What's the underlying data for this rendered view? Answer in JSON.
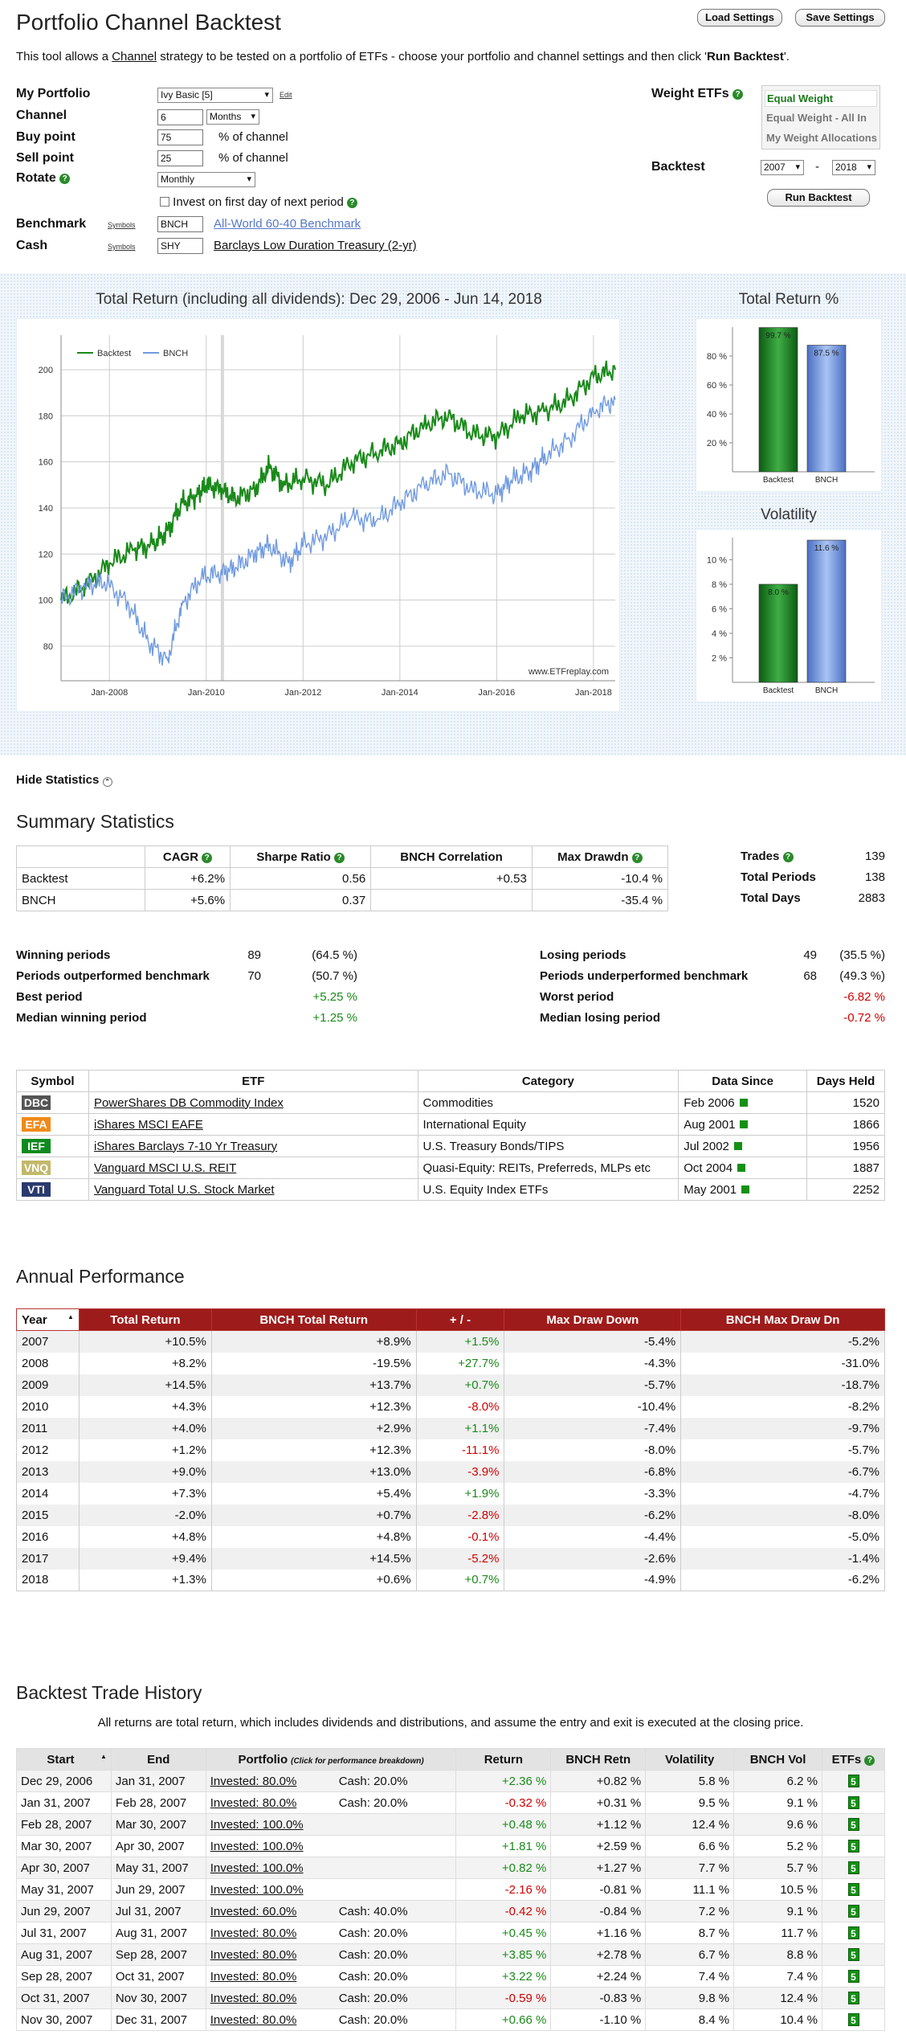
{
  "header": {
    "title": "Portfolio Channel Backtest",
    "load_label": "Load Settings",
    "save_label": "Save Settings",
    "intro_pre": "This tool allows a ",
    "intro_link": "Channel",
    "intro_mid": " strategy to be tested on a portfolio of ETFs - choose your portfolio and channel settings and then click '",
    "intro_bold": "Run Backtest",
    "intro_post": "'."
  },
  "form": {
    "portfolio_label": "My Portfolio",
    "portfolio_value": "Ivy Basic [5]",
    "edit": "Edit",
    "channel_label": "Channel",
    "channel_value": "6",
    "channel_unit": "Months",
    "buy_label": "Buy point",
    "buy_value": "75",
    "pct": "% of channel",
    "sell_label": "Sell point",
    "sell_value": "25",
    "rotate_label": "Rotate",
    "rotate_value": "Monthly",
    "invest_label": "Invest on first day of next period",
    "bench_label": "Benchmark",
    "symbols": "Symbols",
    "bench_value": "BNCH",
    "bench_name": "All-World 60-40 Benchmark",
    "cash_label": "Cash",
    "cash_value": "SHY",
    "cash_name": "Barclays Low Duration Treasury (2-yr)",
    "weight_label": "Weight ETFs",
    "weight_opts": [
      "Equal Weight",
      "Equal Weight - All In",
      "My Weight Allocations"
    ],
    "backtest_label": "Backtest",
    "from": "2007",
    "dash": "-",
    "to": "2018",
    "run": "Run Backtest"
  },
  "colors": {
    "backtest": "#1a8a1a",
    "bench": "#6f9ae0",
    "header_red": "#9e1b1b"
  },
  "chart_data": [
    {
      "type": "line",
      "title": "Total Return (including all dividends): Dec 29, 2006 - Jun 14, 2018",
      "series": [
        {
          "name": "Backtest",
          "color": "#1a8a1a",
          "x": [
            2007.0,
            2007.5,
            2008.0,
            2008.5,
            2008.9,
            2009.2,
            2009.5,
            2009.8,
            2010.0,
            2010.3,
            2010.6,
            2011.0,
            2011.3,
            2011.6,
            2012.0,
            2012.5,
            2013.0,
            2013.5,
            2014.0,
            2014.5,
            2015.0,
            2015.5,
            2016.0,
            2016.5,
            2017.0,
            2017.5,
            2018.0,
            2018.45
          ],
          "y": [
            100,
            106,
            116,
            122,
            124,
            130,
            142,
            145,
            150,
            148,
            144,
            148,
            158,
            150,
            153,
            150,
            160,
            164,
            168,
            176,
            180,
            172,
            171,
            180,
            182,
            187,
            197,
            200
          ]
        },
        {
          "name": "BNCH",
          "color": "#6f9ae0",
          "x": [
            2007.0,
            2007.5,
            2007.9,
            2008.4,
            2008.8,
            2009.2,
            2009.5,
            2009.9,
            2010.3,
            2010.6,
            2011.0,
            2011.3,
            2011.7,
            2012.0,
            2012.5,
            2013.0,
            2013.5,
            2014.0,
            2014.5,
            2015.0,
            2015.5,
            2016.0,
            2016.3,
            2016.7,
            2017.0,
            2017.5,
            2018.0,
            2018.45
          ],
          "y": [
            100,
            106,
            108,
            98,
            82,
            74,
            98,
            110,
            112,
            114,
            120,
            124,
            116,
            124,
            128,
            136,
            134,
            142,
            150,
            155,
            148,
            146,
            152,
            156,
            162,
            170,
            182,
            187
          ]
        }
      ],
      "ylim": [
        65,
        215
      ],
      "xlim": [
        2007.0,
        2018.45
      ],
      "yticks": [
        80,
        100,
        120,
        140,
        160,
        180,
        200
      ],
      "xticks": [
        {
          "x": 2008,
          "label": "Jan-2008"
        },
        {
          "x": 2010,
          "label": "Jan-2010"
        },
        {
          "x": 2012,
          "label": "Jan-2012"
        },
        {
          "x": 2014,
          "label": "Jan-2014"
        },
        {
          "x": 2016,
          "label": "Jan-2016"
        },
        {
          "x": 2018,
          "label": "Jan-2018"
        }
      ],
      "legend": "top-left",
      "watermark": "www.ETFreplay.com",
      "grid": true
    },
    {
      "type": "bar",
      "title": "Total Return %",
      "categories": [
        "Backtest",
        "BNCH"
      ],
      "values": [
        99.7,
        87.5
      ],
      "labels": [
        "99.7 %",
        "87.5 %"
      ],
      "ylim": [
        0,
        100
      ],
      "yticks": [
        20,
        40,
        60,
        80
      ],
      "ytick_labels": [
        "20 %",
        "40 %",
        "60 %",
        "80 %"
      ]
    },
    {
      "type": "bar",
      "title": "Volatility",
      "categories": [
        "Backtest",
        "BNCH"
      ],
      "values": [
        8.0,
        11.6
      ],
      "labels": [
        "8.0 %",
        "11.6 %"
      ],
      "ylim": [
        0,
        11.8
      ],
      "yticks": [
        2,
        4,
        6,
        8,
        10
      ],
      "ytick_labels": [
        "2 %",
        "4 %",
        "6 %",
        "8 %",
        "10 %"
      ]
    }
  ],
  "stats": {
    "hide": "Hide Statistics",
    "summary_title": "Summary Statistics",
    "cols": [
      "",
      "CAGR",
      "Sharpe Ratio",
      "BNCH Correlation",
      "Max Drawdn"
    ],
    "rows": [
      [
        "Backtest",
        "+6.2%",
        "0.56",
        "+0.53",
        "-10.4 %"
      ],
      [
        "BNCH",
        "+5.6%",
        "0.37",
        "",
        "-35.4 %"
      ]
    ],
    "side": [
      [
        "Trades",
        "139"
      ],
      [
        "Total Periods",
        "138"
      ],
      [
        "Total Days",
        "2883"
      ]
    ],
    "left": [
      [
        "Winning periods",
        "89",
        "(64.5 %)"
      ],
      [
        "Periods outperformed benchmark",
        "70",
        "(50.7 %)"
      ],
      [
        "Best period",
        "",
        "+5.25 %"
      ],
      [
        "Median winning period",
        "",
        "+1.25 %"
      ]
    ],
    "right": [
      [
        "Losing periods",
        "49",
        "(35.5 %)"
      ],
      [
        "Periods underperformed benchmark",
        "68",
        "(49.3 %)"
      ],
      [
        "Worst period",
        "",
        "-6.82 %"
      ],
      [
        "Median losing period",
        "",
        "-0.72 %"
      ]
    ]
  },
  "etfs": {
    "cols": [
      "Symbol",
      "ETF",
      "Category",
      "Data Since",
      "Days Held"
    ],
    "rows": [
      {
        "sym": "DBC",
        "color": "#555555",
        "name": "PowerShares DB Commodity Index",
        "cat": "Commodities",
        "since": "Feb 2006",
        "days": "1520"
      },
      {
        "sym": "EFA",
        "color": "#f08a1a",
        "name": "iShares MSCI EAFE",
        "cat": "International Equity",
        "since": "Aug 2001",
        "days": "1866"
      },
      {
        "sym": "IEF",
        "color": "#0e8a1e",
        "name": "iShares Barclays 7-10 Yr Treasury",
        "cat": "U.S. Treasury Bonds/TIPS",
        "since": "Jul 2002",
        "days": "1956"
      },
      {
        "sym": "VNQ",
        "color": "#c2b86a",
        "name": "Vanguard MSCI U.S. REIT",
        "cat": "Quasi-Equity: REITs, Preferreds, MLPs etc",
        "since": "Oct 2004",
        "days": "1887"
      },
      {
        "sym": "VTI",
        "color": "#2b3a6e",
        "name": "Vanguard Total U.S. Stock Market",
        "cat": "U.S. Equity Index ETFs",
        "since": "May 2001",
        "days": "2252"
      }
    ]
  },
  "annual": {
    "title": "Annual Performance",
    "cols": [
      "Year",
      "Total Return",
      "BNCH Total Return",
      "+ / -",
      "Max Draw Down",
      "BNCH Max Draw Dn"
    ],
    "rows": [
      [
        "2007",
        "+10.5%",
        "+8.9%",
        "+1.5%",
        "-5.4%",
        "-5.2%"
      ],
      [
        "2008",
        "+8.2%",
        "-19.5%",
        "+27.7%",
        "-4.3%",
        "-31.0%"
      ],
      [
        "2009",
        "+14.5%",
        "+13.7%",
        "+0.7%",
        "-5.7%",
        "-18.7%"
      ],
      [
        "2010",
        "+4.3%",
        "+12.3%",
        "-8.0%",
        "-10.4%",
        "-8.2%"
      ],
      [
        "2011",
        "+4.0%",
        "+2.9%",
        "+1.1%",
        "-7.4%",
        "-9.7%"
      ],
      [
        "2012",
        "+1.2%",
        "+12.3%",
        "-11.1%",
        "-8.0%",
        "-5.7%"
      ],
      [
        "2013",
        "+9.0%",
        "+13.0%",
        "-3.9%",
        "-6.8%",
        "-6.7%"
      ],
      [
        "2014",
        "+7.3%",
        "+5.4%",
        "+1.9%",
        "-3.3%",
        "-4.7%"
      ],
      [
        "2015",
        "-2.0%",
        "+0.7%",
        "-2.8%",
        "-6.2%",
        "-8.0%"
      ],
      [
        "2016",
        "+4.8%",
        "+4.8%",
        "-0.1%",
        "-4.4%",
        "-5.0%"
      ],
      [
        "2017",
        "+9.4%",
        "+14.5%",
        "-5.2%",
        "-2.6%",
        "-1.4%"
      ],
      [
        "2018",
        "+1.3%",
        "+0.6%",
        "+0.7%",
        "-4.9%",
        "-6.2%"
      ]
    ]
  },
  "history": {
    "title": "Backtest Trade History",
    "note": "All returns are total return, which includes dividends and distributions, and assume the entry and exit is executed at the closing price.",
    "cols": [
      "Start",
      "End",
      "Portfolio",
      "Return",
      "BNCH Retn",
      "Volatility",
      "BNCH Vol",
      "ETFs"
    ],
    "portfolio_hint": "(Click for performance breakdown)",
    "rows": [
      [
        "Dec 29, 2006",
        "Jan 31, 2007",
        "Invested: 80.0%",
        "Cash: 20.0%",
        "+2.36 %",
        "+0.82 %",
        "5.8 %",
        "6.2 %",
        "5"
      ],
      [
        "Jan 31, 2007",
        "Feb 28, 2007",
        "Invested: 80.0%",
        "Cash: 20.0%",
        "-0.32 %",
        "+0.31 %",
        "9.5 %",
        "9.1 %",
        "5"
      ],
      [
        "Feb 28, 2007",
        "Mar 30, 2007",
        "Invested: 100.0%",
        "",
        "+0.48 %",
        "+1.12 %",
        "12.4 %",
        "9.6 %",
        "5"
      ],
      [
        "Mar 30, 2007",
        "Apr 30, 2007",
        "Invested: 100.0%",
        "",
        "+1.81 %",
        "+2.59 %",
        "6.6 %",
        "5.2 %",
        "5"
      ],
      [
        "Apr 30, 2007",
        "May 31, 2007",
        "Invested: 100.0%",
        "",
        "+0.82 %",
        "+1.27 %",
        "7.7 %",
        "5.7 %",
        "5"
      ],
      [
        "May 31, 2007",
        "Jun 29, 2007",
        "Invested: 100.0%",
        "",
        "-2.16 %",
        "-0.81 %",
        "11.1 %",
        "10.5 %",
        "5"
      ],
      [
        "Jun 29, 2007",
        "Jul 31, 2007",
        "Invested: 60.0%",
        "Cash: 40.0%",
        "-0.42 %",
        "-0.84 %",
        "7.2 %",
        "9.1 %",
        "5"
      ],
      [
        "Jul 31, 2007",
        "Aug 31, 2007",
        "Invested: 80.0%",
        "Cash: 20.0%",
        "+0.45 %",
        "+1.16 %",
        "8.7 %",
        "11.7 %",
        "5"
      ],
      [
        "Aug 31, 2007",
        "Sep 28, 2007",
        "Invested: 80.0%",
        "Cash: 20.0%",
        "+3.85 %",
        "+2.78 %",
        "6.7 %",
        "8.8 %",
        "5"
      ],
      [
        "Sep 28, 2007",
        "Oct 31, 2007",
        "Invested: 80.0%",
        "Cash: 20.0%",
        "+3.22 %",
        "+2.24 %",
        "7.4 %",
        "7.4 %",
        "5"
      ],
      [
        "Oct 31, 2007",
        "Nov 30, 2007",
        "Invested: 80.0%",
        "Cash: 20.0%",
        "-0.59 %",
        "-0.83 %",
        "9.8 %",
        "12.4 %",
        "5"
      ],
      [
        "Nov 30, 2007",
        "Dec 31, 2007",
        "Invested: 80.0%",
        "Cash: 20.0%",
        "+0.66 %",
        "-1.10 %",
        "8.4 %",
        "10.4 %",
        "5"
      ]
    ]
  }
}
